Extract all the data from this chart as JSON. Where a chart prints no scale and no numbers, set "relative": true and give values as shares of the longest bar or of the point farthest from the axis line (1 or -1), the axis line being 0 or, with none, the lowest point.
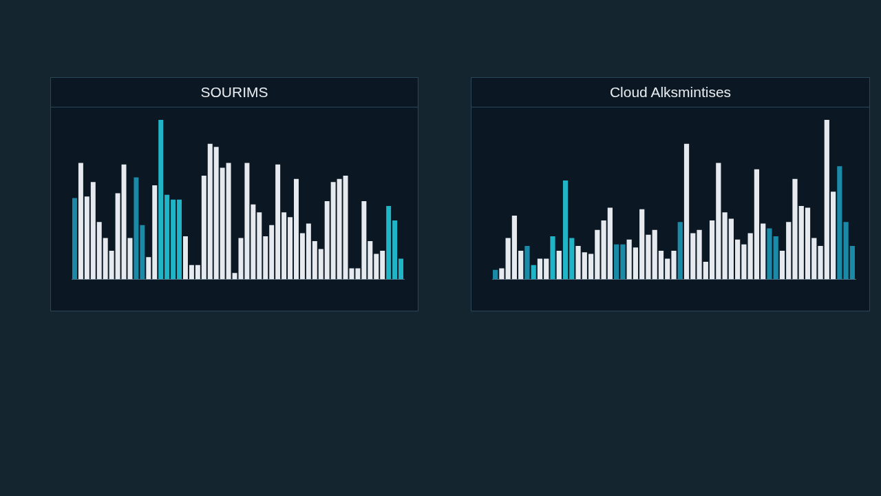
{
  "chart_data": [
    {
      "type": "bar",
      "title": "SOURIMS",
      "relative": true,
      "categories": [
        null,
        null,
        null,
        null,
        null,
        null,
        null,
        null,
        null,
        null,
        null,
        null,
        null,
        null,
        null,
        null,
        null,
        null,
        null,
        null,
        null,
        null,
        null,
        null,
        null,
        null,
        null,
        null,
        null,
        null,
        null,
        null,
        null,
        null,
        null,
        null,
        null,
        null,
        null,
        null,
        null,
        null,
        null,
        null,
        null,
        null,
        null,
        null,
        null,
        null,
        null,
        null,
        null,
        null
      ],
      "values": [
        0.51,
        0.73,
        0.52,
        0.61,
        0.36,
        0.26,
        0.18,
        0.54,
        0.72,
        0.26,
        0.64,
        0.34,
        0.14,
        0.59,
        1,
        0.53,
        0.5,
        0.5,
        0.27,
        0.09,
        0.09,
        0.65,
        0.85,
        0.83,
        0.7,
        0.73,
        0.04,
        0.26,
        0.73,
        0.47,
        0.42,
        0.27,
        0.34,
        0.72,
        0.42,
        0.39,
        0.63,
        0.29,
        0.35,
        0.24,
        0.19,
        0.49,
        0.61,
        0.63,
        0.65,
        0.07,
        0.07,
        0.49,
        0.24,
        0.16,
        0.18,
        0.46,
        0.37,
        0.13
      ],
      "colors": [
        "#1a8aa6",
        "#e6eaee",
        "#e6eaee",
        "#e6eaee",
        "#e6eaee",
        "#e6eaee",
        "#e6eaee",
        "#e6eaee",
        "#e6eaee",
        "#e6eaee",
        "#1a8aa6",
        "#1a8aa6",
        "#e6eaee",
        "#e6eaee",
        "#1fb5c6",
        "#1fb5c6",
        "#1fb5c6",
        "#1fb5c6",
        "#e6eaee",
        "#e6eaee",
        "#e6eaee",
        "#e6eaee",
        "#e6eaee",
        "#e6eaee",
        "#e6eaee",
        "#e6eaee",
        "#e6eaee",
        "#e6eaee",
        "#e6eaee",
        "#e6eaee",
        "#e6eaee",
        "#e6eaee",
        "#e6eaee",
        "#e6eaee",
        "#e6eaee",
        "#e6eaee",
        "#e6eaee",
        "#e6eaee",
        "#e6eaee",
        "#e6eaee",
        "#e6eaee",
        "#e6eaee",
        "#e6eaee",
        "#e6eaee",
        "#e6eaee",
        "#e6eaee",
        "#e6eaee",
        "#e6eaee",
        "#e6eaee",
        "#e6eaee",
        "#e6eaee",
        "#1fb5c6",
        "#1fb5c6",
        "#1fb5c6"
      ]
    },
    {
      "type": "bar",
      "title": "Cloud Alksmintises",
      "relative": true,
      "categories": [
        null,
        null,
        null,
        null,
        null,
        null,
        null,
        null,
        null,
        null,
        null,
        null,
        null,
        null,
        null,
        null,
        null,
        null,
        null,
        null,
        null,
        null,
        null,
        null,
        null,
        null,
        null,
        null,
        null,
        null,
        null,
        null,
        null,
        null,
        null,
        null,
        null,
        null,
        null,
        null,
        null,
        null,
        null,
        null,
        null,
        null,
        null,
        null,
        null,
        null,
        null,
        null,
        null,
        null,
        null,
        null,
        null
      ],
      "values": [
        0.06,
        0.07,
        0.26,
        0.4,
        0.18,
        0.21,
        0.09,
        0.13,
        0.13,
        0.27,
        0.18,
        0.62,
        0.26,
        0.21,
        0.17,
        0.16,
        0.31,
        0.37,
        0.45,
        0.22,
        0.22,
        0.25,
        0.2,
        0.44,
        0.28,
        0.31,
        0.18,
        0.13,
        0.18,
        0.36,
        0.85,
        0.29,
        0.31,
        0.11,
        0.37,
        0.73,
        0.42,
        0.38,
        0.25,
        0.22,
        0.29,
        0.69,
        0.35,
        0.32,
        0.27,
        0.18,
        0.36,
        0.63,
        0.46,
        0.45,
        0.26,
        0.21,
        1,
        0.55,
        0.71,
        0.36,
        0.21
      ],
      "colors": [
        "#1a8aa6",
        "#e6eaee",
        "#e6eaee",
        "#e6eaee",
        "#e6eaee",
        "#1a8aa6",
        "#1fb5c6",
        "#e6eaee",
        "#e6eaee",
        "#1fb5c6",
        "#e6eaee",
        "#1fb5c6",
        "#1fb5c6",
        "#e6eaee",
        "#e6eaee",
        "#e6eaee",
        "#e6eaee",
        "#e6eaee",
        "#e6eaee",
        "#1a8aa6",
        "#1a8aa6",
        "#e6eaee",
        "#e6eaee",
        "#e6eaee",
        "#e6eaee",
        "#e6eaee",
        "#e6eaee",
        "#e6eaee",
        "#e6eaee",
        "#1a8aa6",
        "#e6eaee",
        "#e6eaee",
        "#e6eaee",
        "#e6eaee",
        "#e6eaee",
        "#e6eaee",
        "#e6eaee",
        "#e6eaee",
        "#e6eaee",
        "#e6eaee",
        "#e6eaee",
        "#e6eaee",
        "#e6eaee",
        "#1a8aa6",
        "#1a8aa6",
        "#e6eaee",
        "#e6eaee",
        "#e6eaee",
        "#e6eaee",
        "#e6eaee",
        "#e6eaee",
        "#e6eaee",
        "#e6eaee",
        "#e6eaee",
        "#1a8aa6",
        "#1a8aa6",
        "#1a8aa6"
      ]
    }
  ]
}
